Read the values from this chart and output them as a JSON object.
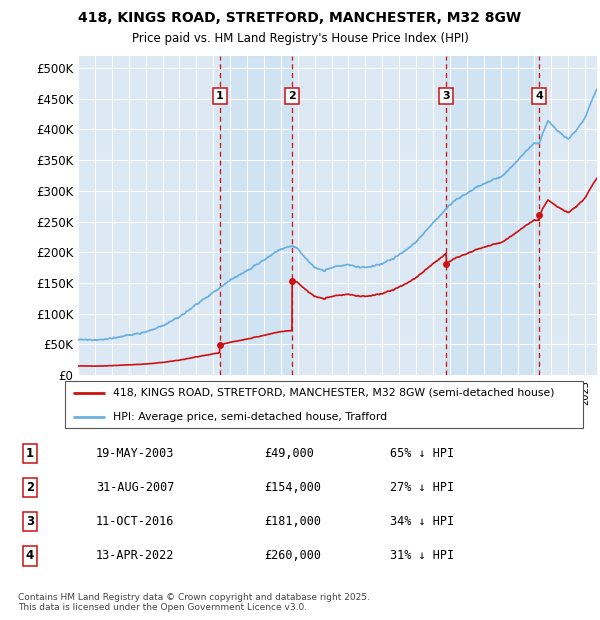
{
  "title1": "418, KINGS ROAD, STRETFORD, MANCHESTER, M32 8GW",
  "title2": "Price paid vs. HM Land Registry's House Price Index (HPI)",
  "ylabel_ticks": [
    "£0",
    "£50K",
    "£100K",
    "£150K",
    "£200K",
    "£250K",
    "£300K",
    "£350K",
    "£400K",
    "£450K",
    "£500K"
  ],
  "ytick_values": [
    0,
    50000,
    100000,
    150000,
    200000,
    250000,
    300000,
    350000,
    400000,
    450000,
    500000
  ],
  "ylim": [
    0,
    520000
  ],
  "xlim_start": 1995.0,
  "xlim_end": 2025.7,
  "plot_bg_color": "#dce9f5",
  "fig_bg_color": "#ffffff",
  "grid_color": "#ffffff",
  "sale_dates": [
    2003.38,
    2007.67,
    2016.78,
    2022.29
  ],
  "sale_prices": [
    49000,
    154000,
    181000,
    260000
  ],
  "legend_line1": "418, KINGS ROAD, STRETFORD, MANCHESTER, M32 8GW (semi-detached house)",
  "legend_line2": "HPI: Average price, semi-detached house, Trafford",
  "table_rows": [
    [
      "1",
      "19-MAY-2003",
      "£49,000",
      "65% ↓ HPI"
    ],
    [
      "2",
      "31-AUG-2007",
      "£154,000",
      "27% ↓ HPI"
    ],
    [
      "3",
      "11-OCT-2016",
      "£181,000",
      "34% ↓ HPI"
    ],
    [
      "4",
      "13-APR-2022",
      "£260,000",
      "31% ↓ HPI"
    ]
  ],
  "footer": "Contains HM Land Registry data © Crown copyright and database right 2025.\nThis data is licensed under the Open Government Licence v3.0.",
  "hpi_color": "#6ab0de",
  "sale_color": "#cc1111",
  "dashed_color": "#cc1111",
  "highlight_bg": "#dce9f5"
}
